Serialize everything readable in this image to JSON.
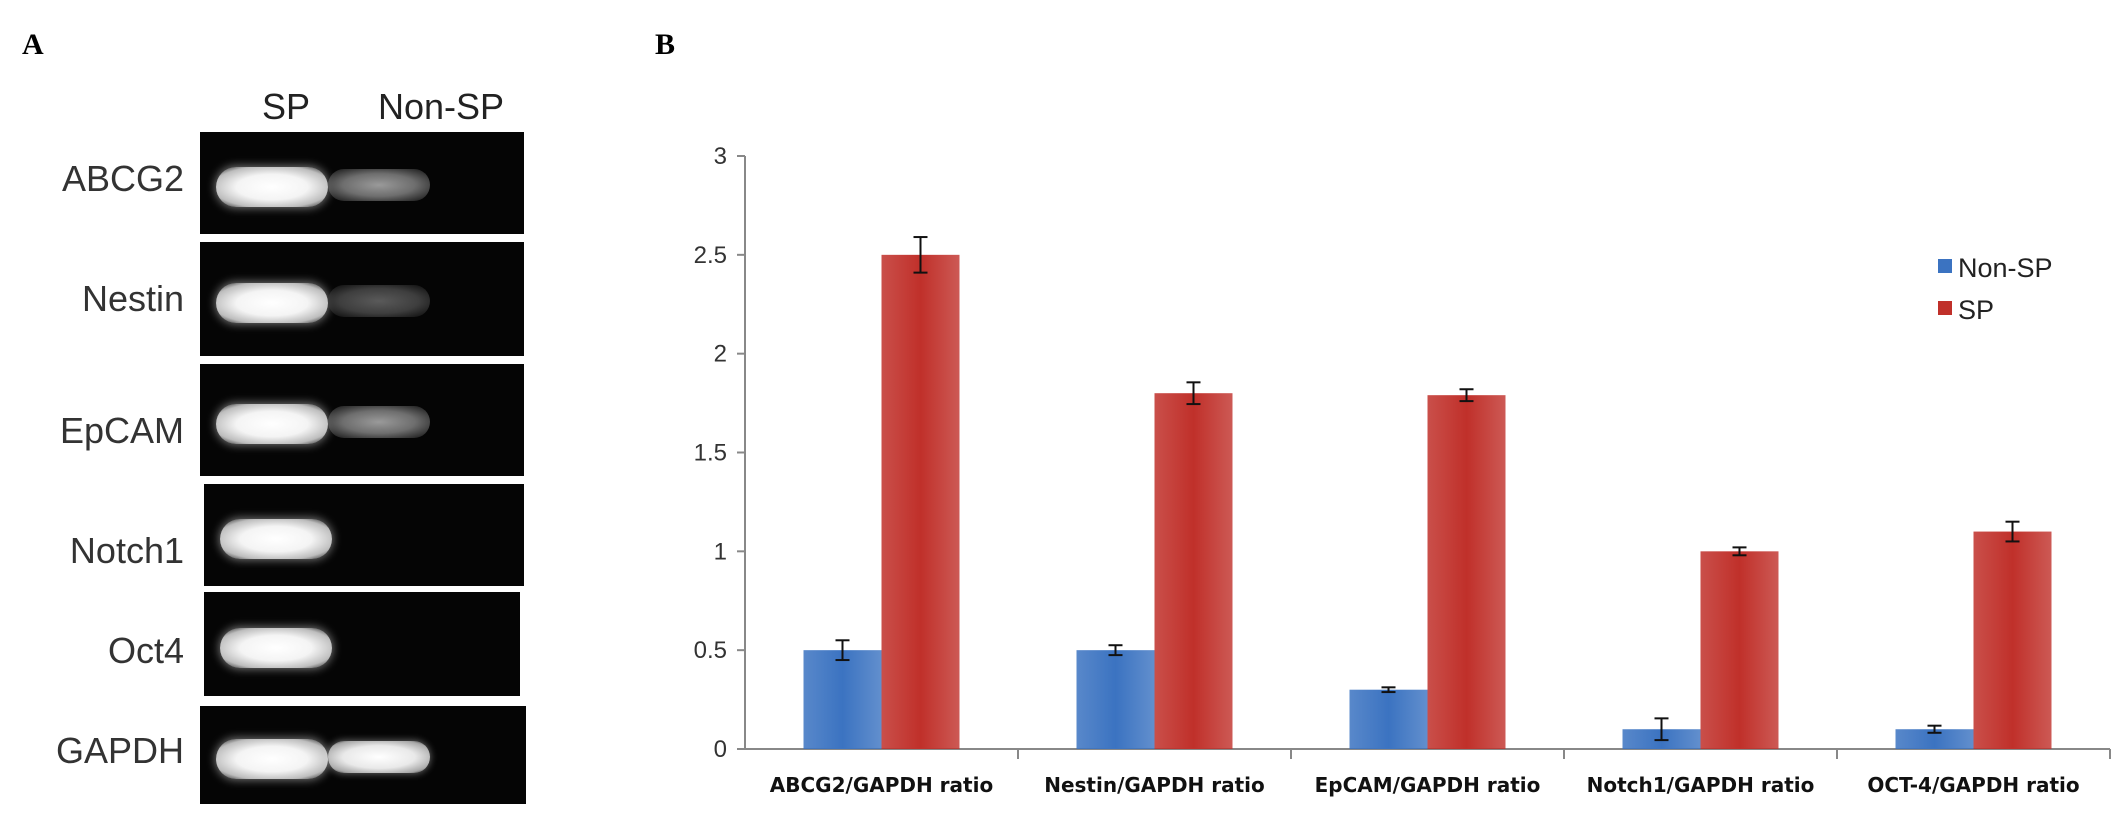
{
  "panels": {
    "a_label": "A",
    "b_label": "B"
  },
  "gel": {
    "columns": [
      "SP",
      "Non-SP"
    ],
    "rows": [
      {
        "gene": "ABCG2",
        "sp_band": "strong",
        "nonsp_band": "weak"
      },
      {
        "gene": "Nestin",
        "sp_band": "strong",
        "nonsp_band": "faint"
      },
      {
        "gene": "EpCAM",
        "sp_band": "strong",
        "nonsp_band": "weak"
      },
      {
        "gene": "Notch1",
        "sp_band": "strong",
        "nonsp_band": "none"
      },
      {
        "gene": "Oct4",
        "sp_band": "strong",
        "nonsp_band": "none"
      },
      {
        "gene": "GAPDH",
        "sp_band": "strong",
        "nonsp_band": "strong"
      }
    ]
  },
  "chart_data": {
    "type": "bar",
    "title": "",
    "xlabel": "",
    "ylabel": "",
    "categories": [
      "ABCG2/GAPDH ratio",
      "Nestin/GAPDH ratio",
      "EpCAM/GAPDH ratio",
      "Notch1/GAPDH ratio",
      "OCT-4/GAPDH ratio"
    ],
    "series": [
      {
        "name": "Non-SP",
        "color": "#3b73c1",
        "values": [
          0.5,
          0.5,
          0.3,
          0.1,
          0.1
        ],
        "errors": [
          0.05,
          0.025,
          0.012,
          0.055,
          0.018
        ]
      },
      {
        "name": "SP",
        "color": "#c0302a",
        "values": [
          2.5,
          1.8,
          1.79,
          1.0,
          1.1
        ],
        "errors": [
          0.09,
          0.055,
          0.03,
          0.02,
          0.05
        ]
      }
    ],
    "ylim": [
      0,
      3
    ],
    "yticks": [
      "0",
      "0.5",
      "1",
      "1.5",
      "2",
      "2.5",
      "3"
    ],
    "grid": false,
    "legend": "right"
  }
}
